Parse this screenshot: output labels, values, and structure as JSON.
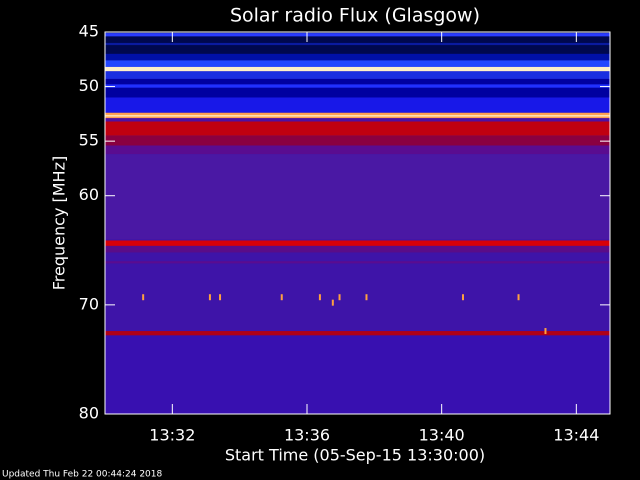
{
  "chart_data": {
    "type": "spectrogram",
    "title": "Solar radio Flux (Glasgow)",
    "y_label": "Frequency [MHz]",
    "x_label": "Start Time (05-Sep-15 13:30:00)",
    "footer": "Updated Thu Feb 22 00:44:24 2018",
    "ylim": [
      45,
      80
    ],
    "yticks": [
      45,
      50,
      55,
      60,
      70,
      80
    ],
    "xlim": [
      "13:30:00",
      "13:45:00"
    ],
    "xticks": [
      "13:32",
      "13:36",
      "13:40",
      "13:44"
    ],
    "bands": [
      {
        "freq": [
          45,
          80
        ],
        "color": "#3e14a8"
      },
      {
        "freq": [
          45,
          47.6
        ],
        "color": "#00084e"
      },
      {
        "freq": [
          45.1,
          45.4
        ],
        "color": "#2a3cff"
      },
      {
        "freq": [
          46.0,
          46.2
        ],
        "color": "#0a1aa0"
      },
      {
        "freq": [
          47.0,
          47.6
        ],
        "color": "#0010a8"
      },
      {
        "freq": [
          47.6,
          48.2
        ],
        "color": "#2448ff"
      },
      {
        "freq": [
          48.2,
          48.6
        ],
        "color": "#fff0c8"
      },
      {
        "freq": [
          48.6,
          49.3
        ],
        "color": "#1a2ee0"
      },
      {
        "freq": [
          49.3,
          51.0
        ],
        "color": "#0000a0"
      },
      {
        "freq": [
          49.8,
          50.1
        ],
        "color": "#2030ff"
      },
      {
        "freq": [
          51.0,
          52.4
        ],
        "color": "#1818e8"
      },
      {
        "freq": [
          52.4,
          52.9
        ],
        "color": "#ffa050"
      },
      {
        "freq": [
          52.6,
          52.75
        ],
        "color": "#ffe0b0"
      },
      {
        "freq": [
          52.9,
          53.2
        ],
        "color": "#5010a0"
      },
      {
        "freq": [
          53.2,
          54.5
        ],
        "color": "#c00010"
      },
      {
        "freq": [
          54.5,
          55.4
        ],
        "color": "#8a0040"
      },
      {
        "freq": [
          55.4,
          56.2
        ],
        "color": "#5a0c90"
      },
      {
        "freq": [
          56.2,
          64.0
        ],
        "color": "#4a18a4"
      },
      {
        "freq": [
          64.1,
          64.6
        ],
        "color": "#d80008"
      },
      {
        "freq": [
          64.6,
          65.2
        ],
        "color": "#5a0c88"
      },
      {
        "freq": [
          66.0,
          66.2
        ],
        "color": "#5a0c90"
      },
      {
        "freq": [
          72.4,
          72.8
        ],
        "color": "#b00018"
      },
      {
        "freq": [
          72.8,
          80
        ],
        "color": "#3810b0"
      }
    ],
    "bursts": [
      {
        "x": "13:31:08",
        "freq": 69.3
      },
      {
        "x": "13:33:07",
        "freq": 69.3
      },
      {
        "x": "13:33:25",
        "freq": 69.3
      },
      {
        "x": "13:35:15",
        "freq": 69.3
      },
      {
        "x": "13:36:23",
        "freq": 69.3
      },
      {
        "x": "13:36:46",
        "freq": 69.8
      },
      {
        "x": "13:36:58",
        "freq": 69.3
      },
      {
        "x": "13:37:46",
        "freq": 69.3
      },
      {
        "x": "13:40:38",
        "freq": 69.3
      },
      {
        "x": "13:42:17",
        "freq": 69.3
      },
      {
        "x": "13:43:05",
        "freq": 72.4
      }
    ],
    "burst_color": "#ffa040"
  }
}
